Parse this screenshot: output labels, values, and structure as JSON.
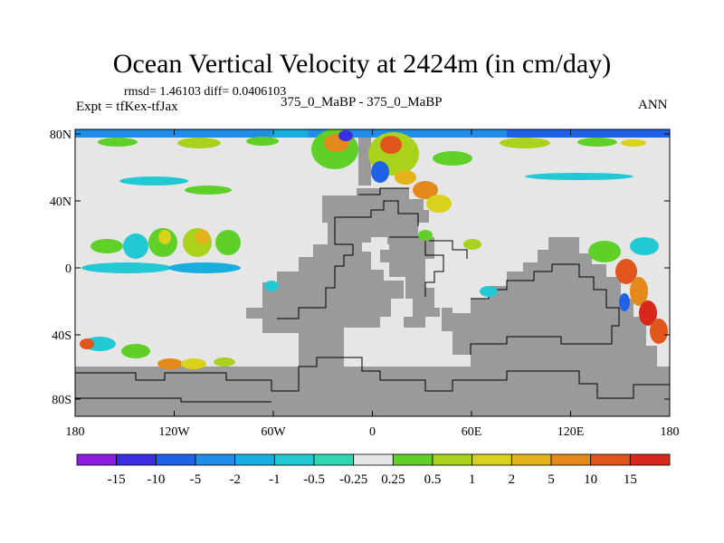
{
  "title": "Ocean Vertical Velocity at 2424m (in cm/day)",
  "stats": "rmsd= 1.46103 diff= 0.0406103",
  "experiment": "Expt = tfKex-tfJax",
  "comparison": "375_0_MaBP - 375_0_MaBP",
  "season": "ANN",
  "lat_ticks": [
    "80N",
    "40N",
    "0",
    "40S",
    "80S"
  ],
  "lon_ticks": [
    "180",
    "120W",
    "60W",
    "0",
    "60E",
    "120E",
    "180"
  ],
  "colorbar": {
    "labels": [
      "-15",
      "-10",
      "-5",
      "-2",
      "-1",
      "-0.5",
      "-0.25",
      "0.25",
      "0.5",
      "1",
      "2",
      "5",
      "10",
      "15"
    ],
    "colors": [
      "#8c1fe0",
      "#3c2ee0",
      "#2062e6",
      "#1e8ee8",
      "#19aee0",
      "#22c9d2",
      "#2fd8b0",
      "#e6e6e6",
      "#5fd028",
      "#a8d21c",
      "#d8d21c",
      "#e6b21c",
      "#e48a1c",
      "#e0561c",
      "#d8281c"
    ]
  },
  "colors": {
    "land": "#9a9a9a",
    "ocean_neutral": "#e6e6e6",
    "coastline": "#000000"
  }
}
